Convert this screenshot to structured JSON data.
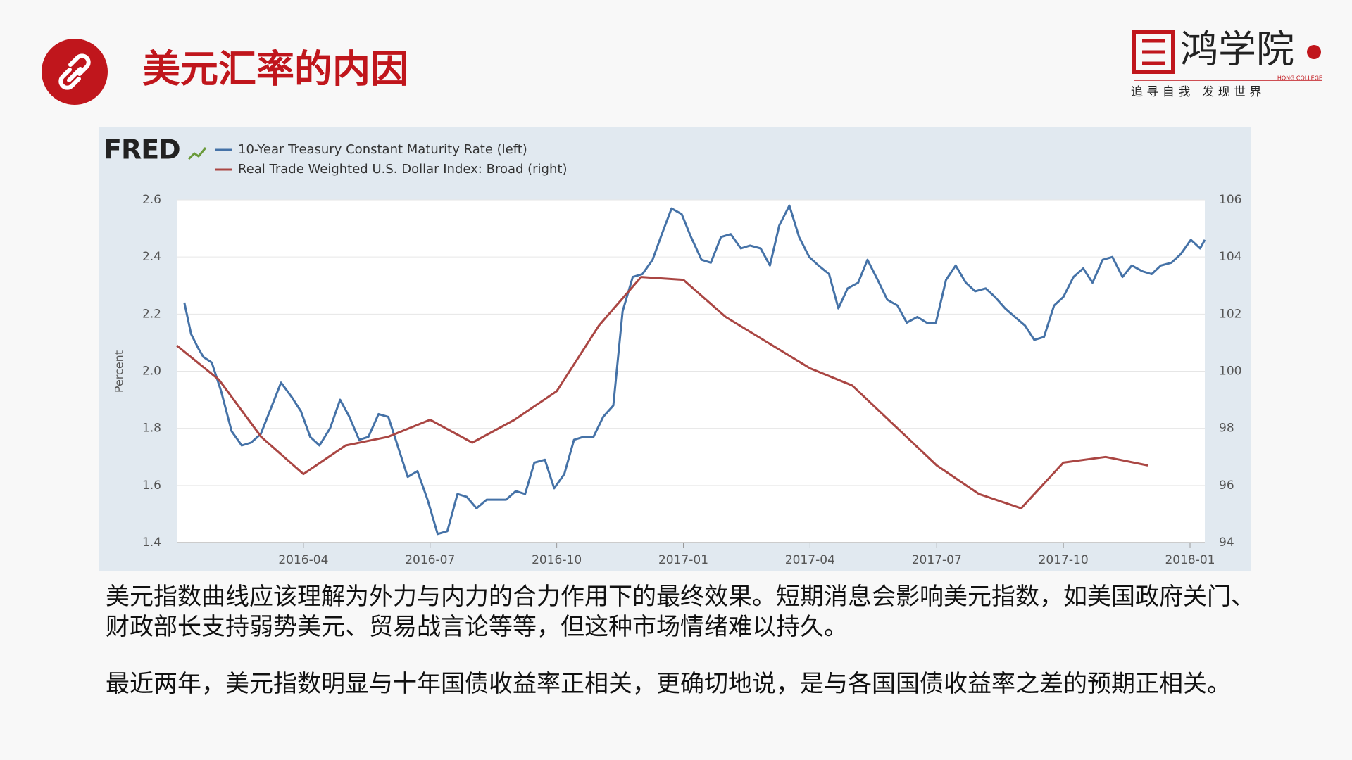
{
  "header": {
    "title": "美元汇率的内因"
  },
  "logo": {
    "name": "鸿学院",
    "english": "HONG COLLEGE",
    "slogan": "追 寻 自 我　发 现 世 界"
  },
  "paragraphs": [
    "美元指数曲线应该理解为外力与内力的合力作用下的最终效果。短期消息会影响美元指数，如美国政府关门、财政部长支持弱势美元、贸易战言论等等，但这种市场情绪难以持久。",
    "最近两年，美元指数明显与十年国债收益率正相关，更确切地说，是与各国国债收益率之差的预期正相关。"
  ],
  "chart_data": {
    "type": "line",
    "source": "FRED",
    "y_label": "Percent",
    "grid": true,
    "xlim": [
      0,
      24.35
    ],
    "xticks": [
      {
        "value": 3,
        "label": "2016-04"
      },
      {
        "value": 6,
        "label": "2016-07"
      },
      {
        "value": 9,
        "label": "2016-10"
      },
      {
        "value": 12,
        "label": "2017-01"
      },
      {
        "value": 15,
        "label": "2017-04"
      },
      {
        "value": 18,
        "label": "2017-07"
      },
      {
        "value": 21,
        "label": "2017-10"
      },
      {
        "value": 24,
        "label": "2018-01"
      }
    ],
    "ylim": [
      1.4,
      2.6
    ],
    "yticks": [
      1.4,
      1.6,
      1.8,
      {
        "value": 2,
        "label": "2.0"
      },
      2.2,
      2.4,
      2.6
    ],
    "y2lim": [
      94,
      106
    ],
    "y2ticks": [
      94,
      96,
      98,
      100,
      102,
      104,
      106
    ],
    "series": [
      {
        "name": "10-Year Treasury Constant Maturity Rate (left)",
        "color": "#4572a7",
        "x": [
          0.18,
          0.34,
          0.51,
          0.63,
          0.83,
          1.05,
          1.3,
          1.54,
          1.76,
          1.99,
          2.23,
          2.47,
          2.72,
          2.94,
          3.16,
          3.38,
          3.63,
          3.87,
          4.09,
          4.32,
          4.54,
          4.78,
          5.01,
          5.23,
          5.47,
          5.7,
          5.94,
          6.18,
          6.41,
          6.65,
          6.87,
          7.1,
          7.34,
          7.56,
          7.8,
          8.03,
          8.25,
          8.47,
          8.72,
          8.94,
          9.18,
          9.41,
          9.63,
          9.87,
          10.1,
          10.34,
          10.56,
          10.8,
          11.03,
          11.27,
          11.49,
          11.72,
          11.96,
          12.18,
          12.43,
          12.65,
          12.89,
          13.12,
          13.36,
          13.58,
          13.83,
          14.05,
          14.27,
          14.51,
          14.74,
          14.98,
          15.2,
          15.45,
          15.67,
          15.89,
          16.14,
          16.36,
          16.6,
          16.83,
          17.07,
          17.29,
          17.54,
          17.76,
          17.98,
          18.22,
          18.45,
          18.69,
          18.91,
          19.16,
          19.38,
          19.62,
          19.85,
          20.09,
          20.31,
          20.54,
          20.78,
          21.0,
          21.24,
          21.47,
          21.69,
          21.93,
          22.16,
          22.4,
          22.62,
          22.87,
          23.09,
          23.31,
          23.56,
          23.78,
          24.02,
          24.24,
          24.35
        ],
        "values": [
          2.24,
          2.13,
          2.08,
          2.05,
          2.03,
          1.93,
          1.79,
          1.74,
          1.75,
          1.78,
          1.87,
          1.96,
          1.91,
          1.86,
          1.77,
          1.74,
          1.8,
          1.9,
          1.84,
          1.76,
          1.77,
          1.85,
          1.84,
          1.74,
          1.63,
          1.65,
          1.55,
          1.43,
          1.44,
          1.57,
          1.56,
          1.52,
          1.55,
          1.55,
          1.55,
          1.58,
          1.57,
          1.68,
          1.69,
          1.59,
          1.64,
          1.76,
          1.77,
          1.77,
          1.84,
          1.88,
          2.21,
          2.33,
          2.34,
          2.39,
          2.48,
          2.57,
          2.55,
          2.47,
          2.39,
          2.38,
          2.47,
          2.48,
          2.43,
          2.44,
          2.43,
          2.37,
          2.51,
          2.58,
          2.47,
          2.4,
          2.37,
          2.34,
          2.22,
          2.29,
          2.31,
          2.39,
          2.32,
          2.25,
          2.23,
          2.17,
          2.19,
          2.17,
          2.17,
          2.32,
          2.37,
          2.31,
          2.28,
          2.29,
          2.26,
          2.22,
          2.19,
          2.16,
          2.11,
          2.12,
          2.23,
          2.26,
          2.33,
          2.36,
          2.31,
          2.39,
          2.4,
          2.33,
          2.37,
          2.35,
          2.34,
          2.37,
          2.38,
          2.41,
          2.46,
          2.43,
          2.46
        ]
      },
      {
        "name": "Real Trade Weighted U.S. Dollar Index: Broad (right)",
        "color": "#aa4643",
        "axis": "y2",
        "x": [
          0,
          1,
          2,
          3,
          4,
          5,
          6,
          7,
          8,
          9,
          10,
          11,
          12,
          13,
          14,
          15,
          16,
          17,
          18,
          19,
          20,
          21,
          22,
          23
        ],
        "values": [
          100.9,
          99.7,
          97.7,
          96.4,
          97.4,
          97.7,
          98.3,
          97.5,
          98.3,
          99.3,
          101.6,
          103.3,
          103.2,
          101.9,
          101.0,
          100.1,
          99.5,
          98.1,
          96.7,
          95.7,
          95.2,
          96.8,
          97.0,
          96.7
        ]
      }
    ]
  }
}
